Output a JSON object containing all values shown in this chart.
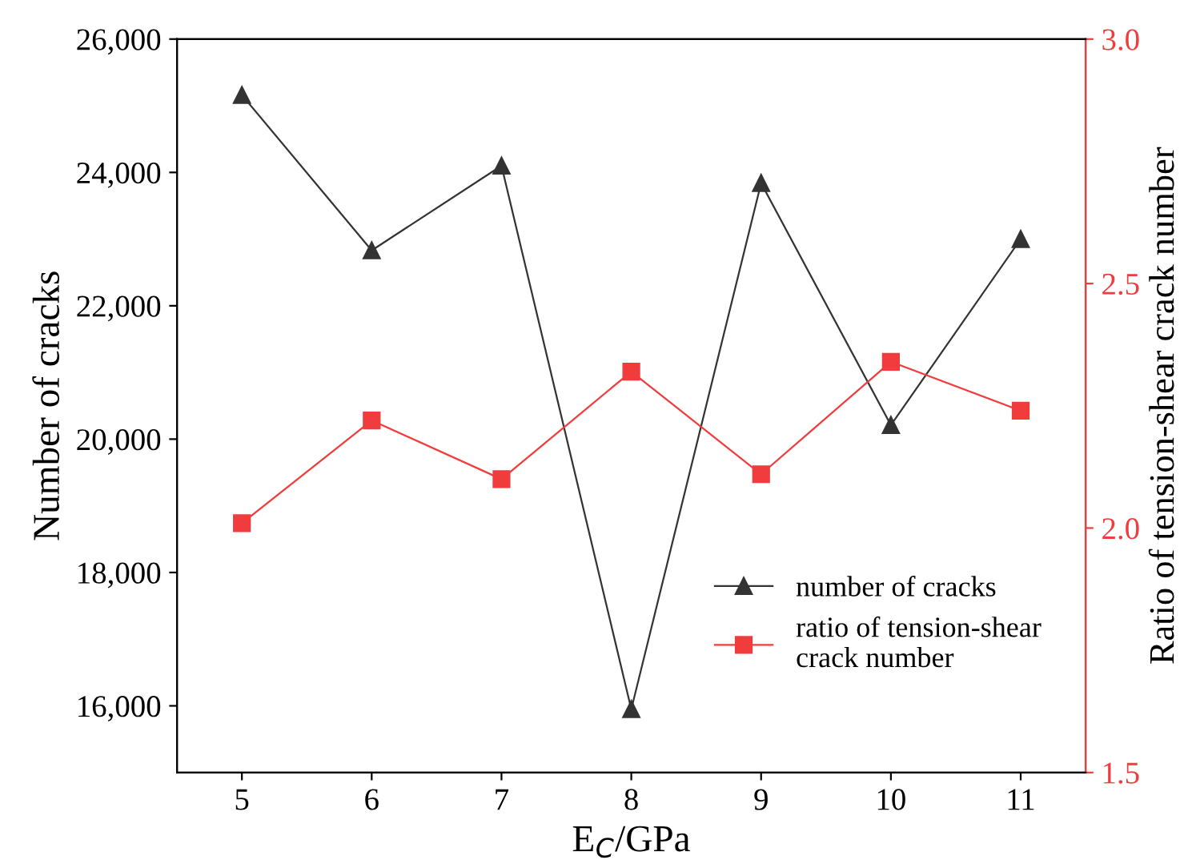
{
  "chart_data": {
    "type": "line",
    "xlabel": "E$_{C}$/GPa",
    "ylabel": "Number of cracks",
    "y2label": "Ratio of tension-shear crack number",
    "x": [
      5,
      6,
      7,
      8,
      9,
      10,
      11
    ],
    "xlim": [
      4.5,
      11.5
    ],
    "xticks": [
      5,
      6,
      7,
      8,
      9,
      10,
      11
    ],
    "ylim": [
      15000,
      26000
    ],
    "yticks": [
      {
        "value": 16000,
        "label": "16,000"
      },
      {
        "value": 18000,
        "label": "18,000"
      },
      {
        "value": 20000,
        "label": "20,000"
      },
      {
        "value": 22000,
        "label": "22,000"
      },
      {
        "value": 24000,
        "label": "24,000"
      },
      {
        "value": 26000,
        "label": "26,000"
      }
    ],
    "y2lim": [
      1.5,
      3.0
    ],
    "y2ticks": [
      {
        "value": 1.5,
        "label": "1.5"
      },
      {
        "value": 2.0,
        "label": "2.0"
      },
      {
        "value": 2.5,
        "label": "2.5"
      },
      {
        "value": 3.0,
        "label": "3.0"
      }
    ],
    "series": [
      {
        "name": "number of cracks",
        "color": "#333333",
        "marker": "triangle",
        "values": [
          25160,
          22830,
          24100,
          15950,
          23840,
          20210,
          23000
        ]
      },
      {
        "name": "ratio of tension-shear\ncrack number",
        "color": "#f03c3c",
        "marker": "square",
        "axis": "y2",
        "values": [
          2.01,
          2.22,
          2.1,
          2.32,
          2.11,
          2.34,
          2.24
        ]
      }
    ],
    "legend": "bottom right",
    "grid": false,
    "line_style": "solid"
  }
}
